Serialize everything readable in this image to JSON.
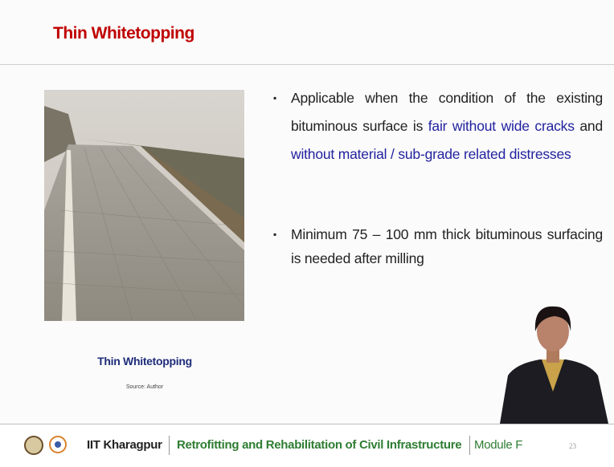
{
  "header": {
    "title": "Thin Whitetopping"
  },
  "figure": {
    "caption": "Thin Whitetopping",
    "source": "Source: Author"
  },
  "bullets": [
    [
      "Applicable when the condition of the existing bituminous surface is ",
      "fair without wide cracks",
      " and ",
      "without material / sub-grade related distresses"
    ],
    [
      "Minimum 75 – 100 mm thick bituminous surfacing is needed after milling"
    ]
  ],
  "footer": {
    "institute": "IIT Kharagpur",
    "course": "Retrofitting and Rehabilitation of Civil Infrastructure",
    "module": "Module F",
    "page": "23"
  }
}
